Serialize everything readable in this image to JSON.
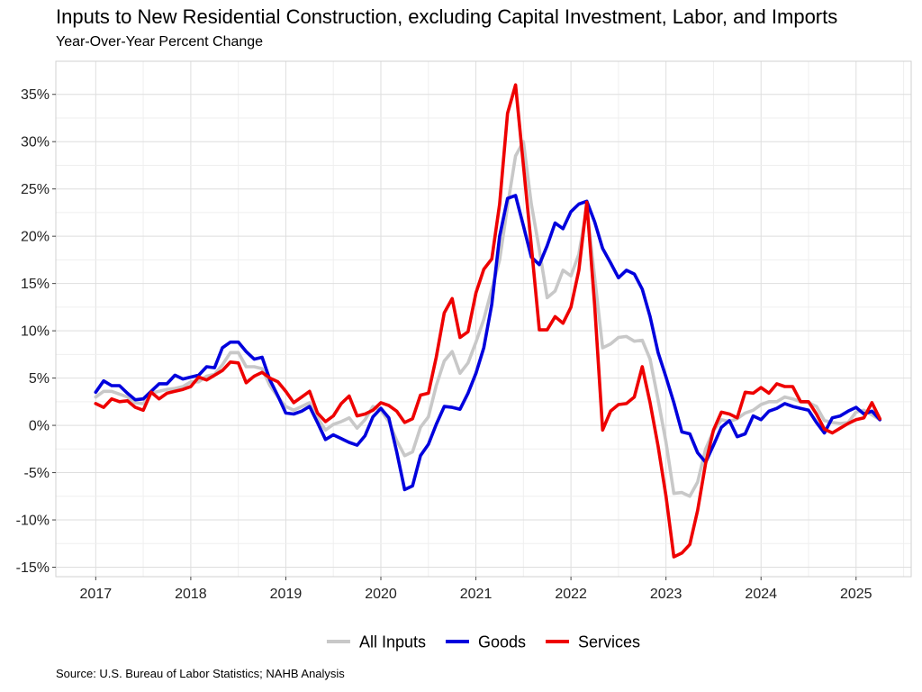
{
  "chart_data": {
    "type": "line",
    "title": "Inputs to New Residential Construction, excluding Capital Investment, Labor, and Imports",
    "subtitle": "Year-Over-Year Percent Change",
    "source": "Source: U.S. Bureau of Labor Statistics; NAHB Analysis",
    "x_tick_labels": [
      "2017",
      "2018",
      "2019",
      "2020",
      "2021",
      "2022",
      "2023",
      "2024",
      "2025"
    ],
    "y_tick_labels": [
      "-15%",
      "-10%",
      "-5%",
      "0%",
      "5%",
      "10%",
      "15%",
      "20%",
      "25%",
      "30%",
      "35%"
    ],
    "y_ticks": [
      -15,
      -10,
      -5,
      0,
      5,
      10,
      15,
      20,
      25,
      30,
      35
    ],
    "xlim": [
      2016.58,
      2025.58
    ],
    "ylim": [
      -16,
      38.5
    ],
    "grid": true,
    "legend_position": "bottom",
    "series": [
      {
        "name": "All Inputs",
        "color": "#c8c8c8",
        "x": [
          2017.0,
          2017.083,
          2017.167,
          2017.25,
          2017.333,
          2017.417,
          2017.5,
          2017.583,
          2017.667,
          2017.75,
          2017.833,
          2017.917,
          2018.0,
          2018.083,
          2018.167,
          2018.25,
          2018.333,
          2018.417,
          2018.5,
          2018.583,
          2018.667,
          2018.75,
          2018.833,
          2018.917,
          2019.0,
          2019.083,
          2019.167,
          2019.25,
          2019.333,
          2019.417,
          2019.5,
          2019.583,
          2019.667,
          2019.75,
          2019.833,
          2019.917,
          2020.0,
          2020.083,
          2020.167,
          2020.25,
          2020.333,
          2020.417,
          2020.5,
          2020.583,
          2020.667,
          2020.75,
          2020.833,
          2020.917,
          2021.0,
          2021.083,
          2021.167,
          2021.25,
          2021.333,
          2021.417,
          2021.5,
          2021.583,
          2021.667,
          2021.75,
          2021.833,
          2021.917,
          2022.0,
          2022.083,
          2022.167,
          2022.25,
          2022.333,
          2022.417,
          2022.5,
          2022.583,
          2022.667,
          2022.75,
          2022.833,
          2022.917,
          2023.0,
          2023.083,
          2023.167,
          2023.25,
          2023.333,
          2023.417,
          2023.5,
          2023.583,
          2023.667,
          2023.75,
          2023.833,
          2023.917,
          2024.0,
          2024.083,
          2024.167,
          2024.25,
          2024.333,
          2024.417,
          2024.5,
          2024.583,
          2024.667,
          2024.75,
          2024.833,
          2024.917,
          2025.0,
          2025.083,
          2025.167,
          2025.25
        ],
        "values": [
          3.0,
          3.6,
          3.6,
          3.3,
          3.0,
          2.4,
          2.3,
          3.4,
          3.6,
          3.8,
          3.9,
          4.1,
          4.6,
          4.6,
          5.2,
          5.4,
          6.4,
          7.7,
          7.7,
          6.2,
          6.2,
          6.0,
          4.2,
          3.0,
          2.0,
          1.6,
          2.0,
          2.4,
          0.8,
          -0.5,
          0.1,
          0.4,
          0.8,
          -0.3,
          0.6,
          2.0,
          1.6,
          0.4,
          -1.6,
          -3.2,
          -2.8,
          -0.2,
          0.9,
          4.2,
          6.8,
          7.8,
          5.5,
          6.6,
          8.8,
          11.2,
          14.4,
          17.5,
          23.2,
          28.5,
          30.0,
          23.4,
          18.6,
          13.5,
          14.2,
          16.4,
          15.8,
          18.1,
          23.0,
          15.6,
          8.2,
          8.6,
          9.3,
          9.4,
          8.9,
          9.0,
          7.0,
          2.7,
          -1.8,
          -7.2,
          -7.1,
          -7.5,
          -6.0,
          -2.5,
          -0.6,
          0.6,
          0.4,
          0.7,
          1.3,
          1.6,
          2.2,
          2.5,
          2.5,
          3.0,
          2.8,
          2.5,
          2.4,
          2.0,
          0.5,
          0.3,
          0.2,
          0.3,
          1.4,
          1.6,
          1.1,
          0.6
        ]
      },
      {
        "name": "Goods",
        "color": "#0000dd",
        "x": [
          2017.0,
          2017.083,
          2017.167,
          2017.25,
          2017.333,
          2017.417,
          2017.5,
          2017.583,
          2017.667,
          2017.75,
          2017.833,
          2017.917,
          2018.0,
          2018.083,
          2018.167,
          2018.25,
          2018.333,
          2018.417,
          2018.5,
          2018.583,
          2018.667,
          2018.75,
          2018.833,
          2018.917,
          2019.0,
          2019.083,
          2019.167,
          2019.25,
          2019.333,
          2019.417,
          2019.5,
          2019.583,
          2019.667,
          2019.75,
          2019.833,
          2019.917,
          2020.0,
          2020.083,
          2020.167,
          2020.25,
          2020.333,
          2020.417,
          2020.5,
          2020.583,
          2020.667,
          2020.75,
          2020.833,
          2020.917,
          2021.0,
          2021.083,
          2021.167,
          2021.25,
          2021.333,
          2021.417,
          2021.5,
          2021.583,
          2021.667,
          2021.75,
          2021.833,
          2021.917,
          2022.0,
          2022.083,
          2022.167,
          2022.25,
          2022.333,
          2022.417,
          2022.5,
          2022.583,
          2022.667,
          2022.75,
          2022.833,
          2022.917,
          2023.0,
          2023.083,
          2023.167,
          2023.25,
          2023.333,
          2023.417,
          2023.5,
          2023.583,
          2023.667,
          2023.75,
          2023.833,
          2023.917,
          2024.0,
          2024.083,
          2024.167,
          2024.25,
          2024.333,
          2024.417,
          2024.5,
          2024.583,
          2024.667,
          2024.75,
          2024.833,
          2024.917,
          2025.0,
          2025.083,
          2025.167,
          2025.25
        ],
        "values": [
          3.5,
          4.7,
          4.2,
          4.2,
          3.4,
          2.7,
          2.8,
          3.6,
          4.4,
          4.4,
          5.3,
          4.9,
          5.1,
          5.3,
          6.2,
          6.1,
          8.2,
          8.8,
          8.8,
          7.8,
          7.0,
          7.2,
          4.8,
          3.1,
          1.3,
          1.2,
          1.5,
          2.0,
          0.3,
          -1.5,
          -1.0,
          -1.4,
          -1.8,
          -2.1,
          -1.1,
          0.9,
          1.8,
          0.8,
          -2.8,
          -6.8,
          -6.4,
          -3.2,
          -2.0,
          0.1,
          2.0,
          1.9,
          1.7,
          3.4,
          5.5,
          8.2,
          12.8,
          20.0,
          24.0,
          24.3,
          21.1,
          17.8,
          17.0,
          19.0,
          21.4,
          20.8,
          22.6,
          23.4,
          23.7,
          21.5,
          18.7,
          17.2,
          15.6,
          16.4,
          16.0,
          14.4,
          11.5,
          7.7,
          5.1,
          2.4,
          -0.7,
          -0.9,
          -2.9,
          -3.9,
          -2.1,
          -0.2,
          0.5,
          -1.2,
          -0.9,
          1.0,
          0.6,
          1.5,
          1.8,
          2.3,
          2.0,
          1.8,
          1.6,
          0.3,
          -0.8,
          0.8,
          1.0,
          1.5,
          1.9,
          1.2,
          1.5,
          0.6
        ]
      },
      {
        "name": "Services",
        "color": "#ee0000",
        "x": [
          2017.0,
          2017.083,
          2017.167,
          2017.25,
          2017.333,
          2017.417,
          2017.5,
          2017.583,
          2017.667,
          2017.75,
          2017.833,
          2017.917,
          2018.0,
          2018.083,
          2018.167,
          2018.25,
          2018.333,
          2018.417,
          2018.5,
          2018.583,
          2018.667,
          2018.75,
          2018.833,
          2018.917,
          2019.0,
          2019.083,
          2019.167,
          2019.25,
          2019.333,
          2019.417,
          2019.5,
          2019.583,
          2019.667,
          2019.75,
          2019.833,
          2019.917,
          2020.0,
          2020.083,
          2020.167,
          2020.25,
          2020.333,
          2020.417,
          2020.5,
          2020.583,
          2020.667,
          2020.75,
          2020.833,
          2020.917,
          2021.0,
          2021.083,
          2021.167,
          2021.25,
          2021.333,
          2021.417,
          2021.5,
          2021.583,
          2021.667,
          2021.75,
          2021.833,
          2021.917,
          2022.0,
          2022.083,
          2022.167,
          2022.25,
          2022.333,
          2022.417,
          2022.5,
          2022.583,
          2022.667,
          2022.75,
          2022.833,
          2022.917,
          2023.0,
          2023.083,
          2023.167,
          2023.25,
          2023.333,
          2023.417,
          2023.5,
          2023.583,
          2023.667,
          2023.75,
          2023.833,
          2023.917,
          2024.0,
          2024.083,
          2024.167,
          2024.25,
          2024.333,
          2024.417,
          2024.5,
          2024.583,
          2024.667,
          2024.75,
          2024.833,
          2024.917,
          2025.0,
          2025.083,
          2025.167,
          2025.25
        ],
        "values": [
          2.3,
          1.9,
          2.8,
          2.5,
          2.6,
          1.9,
          1.6,
          3.5,
          2.8,
          3.4,
          3.6,
          3.8,
          4.1,
          5.1,
          4.8,
          5.3,
          5.8,
          6.7,
          6.6,
          4.5,
          5.2,
          5.6,
          5.0,
          4.6,
          3.6,
          2.4,
          3.0,
          3.6,
          1.3,
          0.4,
          1.0,
          2.3,
          3.1,
          1.0,
          1.2,
          1.6,
          2.4,
          2.1,
          1.5,
          0.3,
          0.7,
          3.2,
          3.4,
          7.2,
          11.9,
          13.4,
          9.3,
          9.9,
          14.0,
          16.5,
          17.6,
          23.4,
          33.0,
          36.0,
          27.5,
          19.0,
          10.1,
          10.1,
          11.5,
          10.8,
          12.5,
          16.4,
          23.6,
          12.6,
          -0.5,
          1.5,
          2.2,
          2.3,
          3.0,
          6.2,
          2.4,
          -2.2,
          -7.5,
          -13.9,
          -13.5,
          -12.6,
          -9.0,
          -4.0,
          -0.5,
          1.4,
          1.2,
          0.8,
          3.5,
          3.4,
          4.0,
          3.4,
          4.4,
          4.1,
          4.1,
          2.5,
          2.5,
          1.2,
          -0.4,
          -0.8,
          -0.3,
          0.2,
          0.6,
          0.8,
          2.4,
          0.7
        ]
      }
    ]
  }
}
